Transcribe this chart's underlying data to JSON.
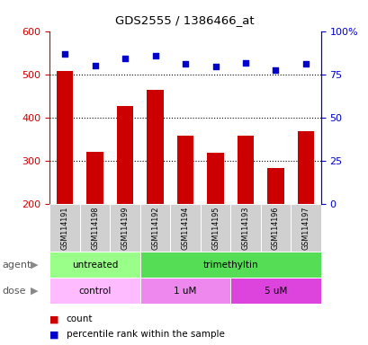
{
  "title": "GDS2555 / 1386466_at",
  "samples": [
    "GSM114191",
    "GSM114198",
    "GSM114199",
    "GSM114192",
    "GSM114194",
    "GSM114195",
    "GSM114193",
    "GSM114196",
    "GSM114197"
  ],
  "counts": [
    507,
    320,
    427,
    463,
    358,
    318,
    358,
    282,
    368
  ],
  "percentiles": [
    548,
    520,
    536,
    543,
    525,
    517,
    526,
    510,
    524
  ],
  "ylim_left": [
    200,
    600
  ],
  "ylim_right": [
    0,
    100
  ],
  "left_ticks": [
    200,
    300,
    400,
    500,
    600
  ],
  "right_ticks": [
    0,
    25,
    50,
    75,
    100
  ],
  "right_tick_labels": [
    "0",
    "25",
    "50",
    "75",
    "100%"
  ],
  "bar_color": "#cc0000",
  "scatter_color": "#0000cc",
  "dotted_line_values": [
    300,
    400,
    500
  ],
  "agent_labels": [
    {
      "text": "untreated",
      "start": 0,
      "end": 3,
      "color": "#99ff88"
    },
    {
      "text": "trimethyltin",
      "start": 3,
      "end": 9,
      "color": "#55dd55"
    }
  ],
  "dose_labels": [
    {
      "text": "control",
      "start": 0,
      "end": 3,
      "color": "#ffbbff"
    },
    {
      "text": "1 uM",
      "start": 3,
      "end": 6,
      "color": "#ee88ee"
    },
    {
      "text": "5 uM",
      "start": 6,
      "end": 9,
      "color": "#dd44dd"
    }
  ],
  "left_axis_color": "#cc0000",
  "right_axis_color": "#0000cc",
  "bg_color": "#ffffff",
  "agent_row_label": "agent",
  "dose_row_label": "dose",
  "legend_count_label": "count",
  "legend_percentile_label": "percentile rank within the sample",
  "bar_width": 0.55
}
